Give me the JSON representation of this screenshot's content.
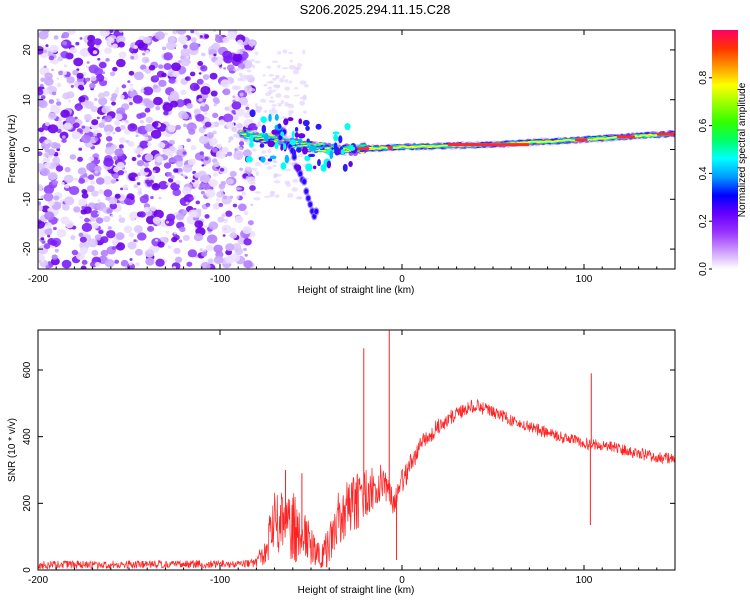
{
  "title": "S206.2025.294.11.15.C28",
  "chart_data": [
    {
      "type": "heatmap",
      "xlabel": "Height of straight line (km)",
      "ylabel": "Frequency (Hz)",
      "xlim": [
        -200,
        150
      ],
      "ylim": [
        -24,
        24
      ],
      "x_ticks": [
        -200,
        -100,
        0,
        100
      ],
      "x_tick_labels": [
        "-200",
        "-100",
        "0",
        "100"
      ],
      "y_ticks": [
        -20,
        -10,
        0,
        10,
        20
      ],
      "y_tick_labels": [
        "-20",
        "-10",
        "0",
        "10",
        "20"
      ],
      "colorbar": {
        "label": "Normalized spectral amplitude",
        "range": [
          0,
          1
        ],
        "ticks": [
          0.0,
          0.2,
          0.4,
          0.6,
          0.8
        ],
        "tick_labels": [
          "0.0",
          "0.2",
          "0.4",
          "0.6",
          "0.8"
        ],
        "colors": [
          "#ffffff",
          "#cc99ff",
          "#9933ff",
          "#6600ff",
          "#0000ff",
          "#0099ff",
          "#00ffff",
          "#00ff66",
          "#33ff00",
          "#99ff00",
          "#ffff00",
          "#ff9900",
          "#ff3300",
          "#ff0066"
        ]
      },
      "features": {
        "noise_region_x": [
          -200,
          -88
        ],
        "dominant_line": [
          [
            -88,
            3
          ],
          [
            -70,
            2
          ],
          [
            -50,
            0.5
          ],
          [
            -30,
            0
          ],
          [
            0,
            0.5
          ],
          [
            50,
            1
          ],
          [
            100,
            2
          ],
          [
            150,
            3.2
          ]
        ],
        "dispersed_branch": [
          [
            -65,
            3
          ],
          [
            -55,
            -5
          ],
          [
            -48,
            -13
          ]
        ]
      }
    },
    {
      "type": "line",
      "xlabel": "Height of straight line (km)",
      "ylabel": "SNR (10 * v/v)",
      "xlim": [
        -200,
        150
      ],
      "ylim": [
        0,
        720
      ],
      "x_ticks": [
        -200,
        -100,
        0,
        100
      ],
      "x_tick_labels": [
        "-200",
        "-100",
        "0",
        "100"
      ],
      "y_ticks": [
        0,
        200,
        400,
        600
      ],
      "y_tick_labels": [
        "0",
        "200",
        "400",
        "600"
      ],
      "series": [
        {
          "name": "SNR",
          "color": "#ff2222",
          "envelope_x": [
            -200,
            -90,
            -80,
            -75,
            -70,
            -60,
            -55,
            -45,
            -40,
            -35,
            -30,
            -20,
            -15,
            -10,
            -5,
            0,
            10,
            20,
            30,
            40,
            60,
            80,
            100,
            110,
            130,
            150
          ],
          "envelope_y": [
            15,
            18,
            20,
            60,
            150,
            130,
            110,
            40,
            70,
            160,
            180,
            230,
            250,
            270,
            200,
            260,
            380,
            430,
            470,
            495,
            450,
            410,
            380,
            375,
            350,
            330
          ],
          "noise_amp": [
            12,
            12,
            15,
            50,
            90,
            110,
            90,
            35,
            60,
            80,
            90,
            80,
            60,
            50,
            40,
            40,
            30,
            25,
            22,
            20,
            18,
            18,
            18,
            18,
            18,
            18
          ],
          "spikes": [
            {
              "x": -64,
              "y": 300
            },
            {
              "x": -55,
              "y": 290
            },
            {
              "x": -21,
              "y": 665
            },
            {
              "x": -7,
              "y": 718
            },
            {
              "x": -3,
              "y": 30
            },
            {
              "x": 104,
              "y": 590
            },
            {
              "x": 103.5,
              "y": 135
            }
          ]
        }
      ]
    }
  ]
}
